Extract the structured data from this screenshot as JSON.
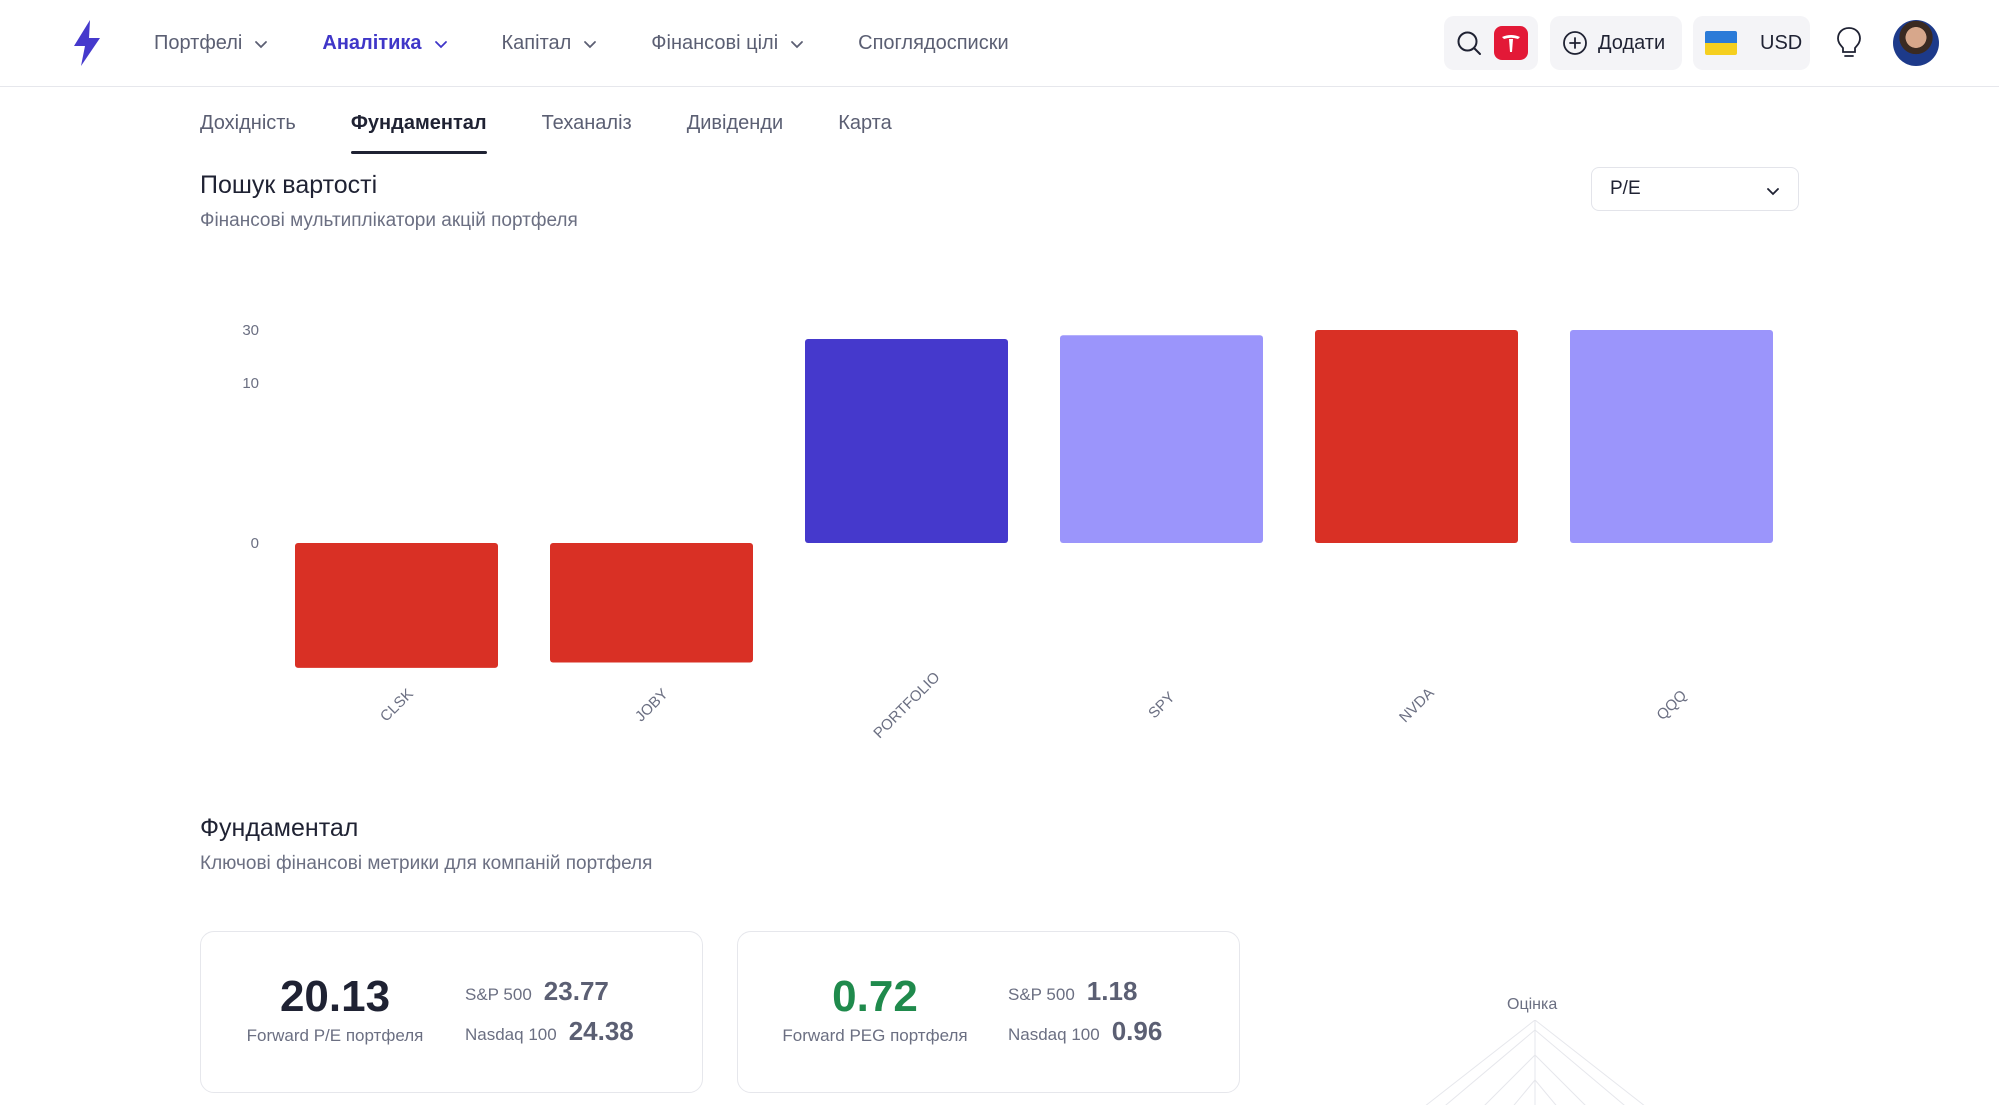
{
  "nav": {
    "items": [
      {
        "label": "Портфелі",
        "has_dropdown": true,
        "active": false
      },
      {
        "label": "Аналітика",
        "has_dropdown": true,
        "active": true
      },
      {
        "label": "Капітал",
        "has_dropdown": true,
        "active": false
      },
      {
        "label": "Фінансові цілі",
        "has_dropdown": true,
        "active": false
      },
      {
        "label": "Споглядосписки",
        "has_dropdown": false,
        "active": false
      }
    ],
    "add_label": "Додати",
    "currency": "USD",
    "icons": [
      "logo-bolt-icon",
      "search-icon",
      "tesla-icon",
      "plus-circle-icon",
      "ukraine-flag-icon",
      "lightbulb-icon",
      "user-avatar"
    ]
  },
  "subtabs": [
    {
      "label": "Дохідність",
      "active": false
    },
    {
      "label": "Фундаментал",
      "active": true
    },
    {
      "label": "Теханаліз",
      "active": false
    },
    {
      "label": "Дивіденди",
      "active": false
    },
    {
      "label": "Карта",
      "active": false
    }
  ],
  "value_section": {
    "title": "Пошук вартості",
    "subtitle": "Фінансові мультиплікатори акцій портфеля",
    "metric_selected": "P/E"
  },
  "chart_data": {
    "type": "bar",
    "categories": [
      "CLSK",
      "JOBY",
      "PORTFOLIO",
      "SPY",
      "NVDA",
      "QQQ"
    ],
    "values": [
      -5.5,
      -5.0,
      25.0,
      27.0,
      30.0,
      30.0
    ],
    "colors": [
      "#d93025",
      "#d93025",
      "#4539cc",
      "#9b95fb",
      "#d93025",
      "#9b95fb"
    ],
    "y_ticks": [
      0,
      10,
      30
    ],
    "y_scale": "symlog",
    "title": "",
    "xlabel": "",
    "ylabel": "",
    "grid": false
  },
  "fundamental_section": {
    "title": "Фундаментал",
    "subtitle": "Ключові фінансові метрики для компаній портфеля"
  },
  "cards": [
    {
      "value": "20.13",
      "label": "Forward P/E портфеля",
      "value_color": "#1f2233",
      "comparisons": [
        {
          "label": "S&P 500",
          "value": "23.77"
        },
        {
          "label": "Nasdaq 100",
          "value": "24.38"
        }
      ]
    },
    {
      "value": "0.72",
      "label": "Forward PEG портфеля",
      "value_color": "#1f8a4c",
      "comparisons": [
        {
          "label": "S&P 500",
          "value": "1.18"
        },
        {
          "label": "Nasdaq 100",
          "value": "0.96"
        }
      ]
    }
  ],
  "radar": {
    "label": "Оцінка"
  }
}
